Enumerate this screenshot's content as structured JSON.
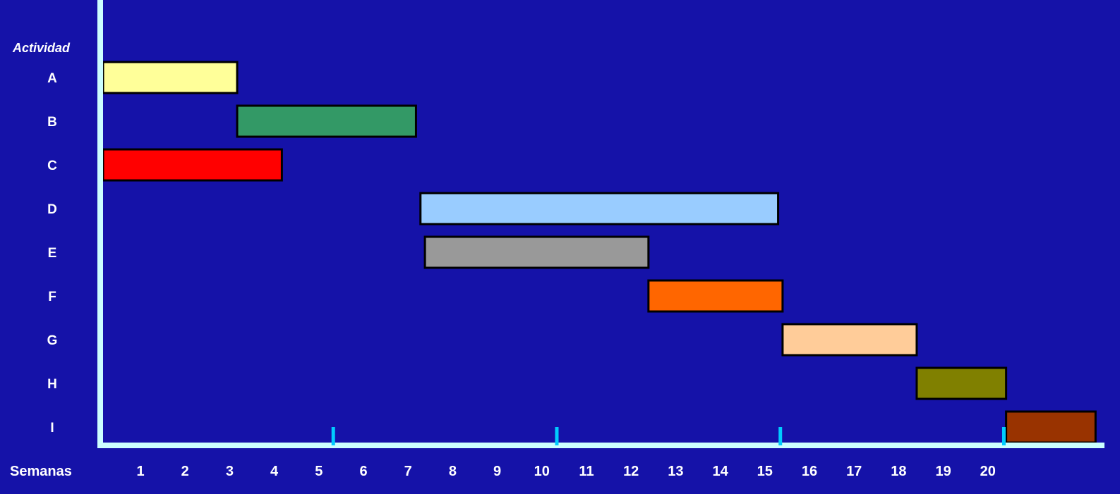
{
  "chart_data": {
    "type": "gantt",
    "title": "",
    "ylabel": "Actividad",
    "xlabel": "Semanas",
    "x_ticks": [
      "1",
      "2",
      "3",
      "4",
      "5",
      "6",
      "7",
      "8",
      "9",
      "10",
      "11",
      "12",
      "13",
      "14",
      "15",
      "16",
      "17",
      "18",
      "19",
      "20"
    ],
    "xlim": [
      0,
      22.4
    ],
    "activities": [
      {
        "label": "A",
        "start": 0,
        "end": 3.0,
        "color": "#ffff99"
      },
      {
        "label": "B",
        "start": 3.0,
        "end": 7.0,
        "color": "#339966"
      },
      {
        "label": "C",
        "start": 0,
        "end": 4.0,
        "color": "#ff0000"
      },
      {
        "label": "D",
        "start": 7.1,
        "end": 15.1,
        "color": "#99ccff"
      },
      {
        "label": "E",
        "start": 7.2,
        "end": 12.2,
        "color": "#999999"
      },
      {
        "label": "F",
        "start": 12.2,
        "end": 15.2,
        "color": "#ff6600"
      },
      {
        "label": "G",
        "start": 15.2,
        "end": 18.2,
        "color": "#ffcc99"
      },
      {
        "label": "H",
        "start": 18.2,
        "end": 20.2,
        "color": "#808000"
      },
      {
        "label": "I",
        "start": 20.2,
        "end": 22.2,
        "color": "#993300"
      }
    ],
    "milestones": [
      5,
      10,
      15,
      20
    ],
    "colors": {
      "background": "#1512a8",
      "axis": "#ccffff",
      "milestone": "#00ccff",
      "text": "#ffffff"
    }
  }
}
